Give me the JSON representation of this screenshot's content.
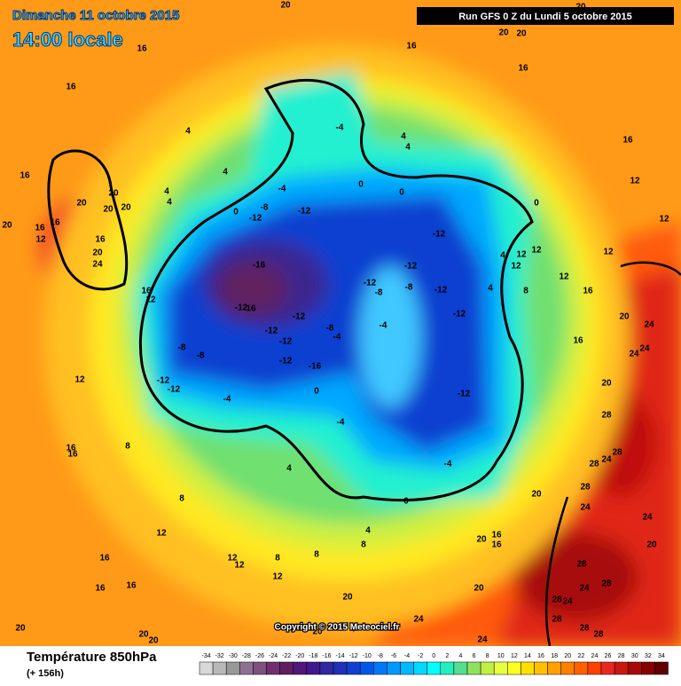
{
  "header": {
    "date": "Dimanche 11 octobre 2015",
    "time": "14:00 locale",
    "run": "Run GFS 0 Z du Lundi 5 octobre 2015",
    "copyright": "Copyright © 2015 Meteociel.fr"
  },
  "footer": {
    "title": "Température 850hPa",
    "lead": "(+ 156h)"
  },
  "scale": {
    "values": [
      -34,
      -32,
      -30,
      -28,
      -26,
      -24,
      -22,
      -20,
      -18,
      -16,
      -14,
      -12,
      -10,
      -8,
      -6,
      -4,
      -2,
      0,
      2,
      4,
      6,
      8,
      10,
      12,
      14,
      16,
      18,
      20,
      22,
      24,
      26,
      28,
      30,
      32,
      34
    ],
    "colors": [
      "#d8d8d8",
      "#b8b8b8",
      "#989898",
      "#907090",
      "#805080",
      "#703070",
      "#602060",
      "#501878",
      "#401890",
      "#3028a0",
      "#2030b8",
      "#1040d0",
      "#0058e8",
      "#0078f8",
      "#0098ff",
      "#00b8ff",
      "#00d8ff",
      "#00ffff",
      "#20f0c0",
      "#50e090",
      "#90e060",
      "#c0f040",
      "#e8ff40",
      "#ffff20",
      "#ffe000",
      "#ffc000",
      "#ffa000",
      "#ff8000",
      "#ff6000",
      "#ff4000",
      "#e82820",
      "#c81810",
      "#a80808",
      "#880000",
      "#600000"
    ]
  },
  "map_labels": [
    "16",
    "16",
    "16",
    "20",
    "20",
    "20",
    "20",
    "16",
    "16",
    "20",
    "16",
    "20",
    "24",
    "12",
    "16",
    "12",
    "4",
    "4",
    "4",
    "4",
    "0",
    "-8",
    "-12",
    "-12",
    "-4",
    "-4",
    "4",
    "4",
    "0",
    "0",
    "0",
    "-12",
    "-16",
    "-12",
    "-12",
    "-8",
    "-8",
    "-12",
    "-12",
    "-12",
    "16",
    "-12",
    "-12",
    "-12",
    "-12",
    "-8",
    "-4",
    "-4",
    "-8",
    "-8",
    "-12",
    "-12",
    "-16",
    "-4",
    "-12",
    "-4",
    "0",
    "4",
    "12",
    "12",
    "12",
    "12",
    "4",
    "8",
    "16",
    "16",
    "12",
    "12",
    "12",
    "20",
    "24",
    "24",
    "24",
    "16",
    "20",
    "28",
    "28",
    "24",
    "28",
    "20",
    "28",
    "24",
    "24",
    "20",
    "28",
    "24",
    "28",
    "24",
    "28",
    "28",
    "28",
    "28",
    "24",
    "24",
    "20",
    "20",
    "16",
    "16",
    "16",
    "20",
    "20",
    "20",
    "16",
    "20",
    "12",
    "8",
    "12",
    "12",
    "8",
    "8",
    "12",
    "16",
    "16",
    "16",
    "20",
    "20",
    "20",
    "20",
    "20",
    "16",
    "16",
    "8",
    "4",
    "-4",
    "0",
    "4",
    "8",
    "12"
  ]
}
